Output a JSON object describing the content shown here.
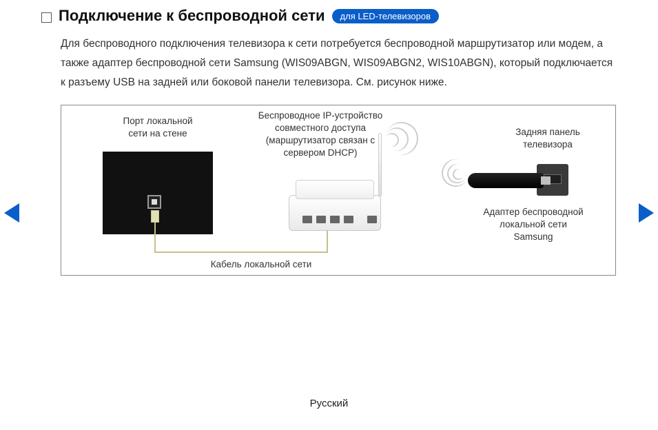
{
  "header": {
    "title": "Подключение к беспроводной сети",
    "badge": "для LED-телевизоров"
  },
  "body": {
    "paragraph": "Для беспроводного подключения телевизора к сети потребуется беспроводной маршрутизатор или модем, а также адаптер беспроводной сети Samsung (WIS09ABGN, WIS09ABGN2, WIS10ABGN), который подключается к разъему USB на задней или боковой панели телевизора. См. рисунок ниже."
  },
  "diagram": {
    "wall_port_label": "Порт локальной\nсети на стене",
    "router_label": "Беспроводное IP-устройство\nсовместного доступа\n(маршрутизатор связан с\nсервером DHCP)",
    "tv_back_label": "Задняя панель\nтелевизора",
    "adapter_label": "Адаптер беспроводной\nлокальной сети\nSamsung",
    "cable_label": "Кабель локальной сети"
  },
  "footer": {
    "language": "Русский"
  },
  "colors": {
    "accent": "#0a5ec9",
    "frame_border": "#888888",
    "text": "#323232",
    "cable": "#c5c08a"
  }
}
